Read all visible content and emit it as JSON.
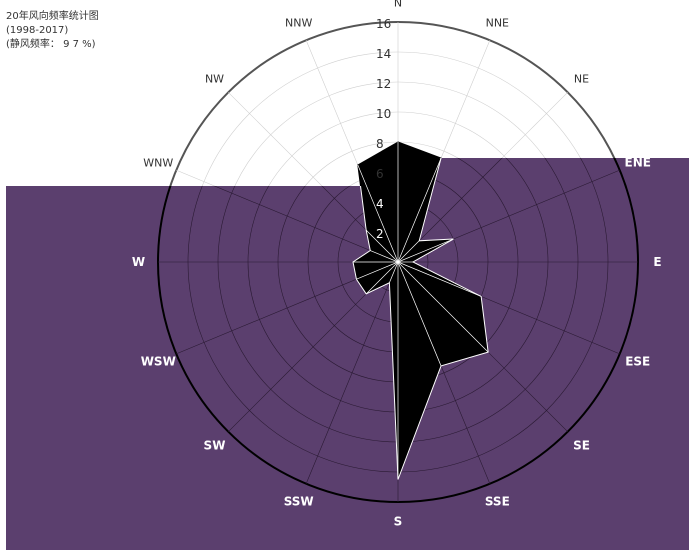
{
  "header": {
    "title": "20年风向频率统计图",
    "period": "(1998-2017)",
    "calm": "(静风频率： 9 7 %)"
  },
  "colors": {
    "background": "#ffffff",
    "overlay": "#5b3f6e",
    "fill": "#000000",
    "grid": "#bbbbbb"
  },
  "chart_data": {
    "type": "polar_rose",
    "title": "20年风向频率统计图",
    "directions": [
      "N",
      "NNE",
      "NE",
      "ENE",
      "E",
      "ESE",
      "SE",
      "SSE",
      "S",
      "SSW",
      "SW",
      "WSW",
      "W",
      "WNW",
      "NW",
      "NNW"
    ],
    "values": [
      8,
      7.5,
      2,
      4,
      1,
      6,
      8.5,
      7.5,
      14.5,
      1.5,
      3,
      3,
      3,
      2,
      3,
      7
    ],
    "rlim": [
      0,
      16
    ],
    "radial_ticks": [
      "2",
      "4",
      "6",
      "8",
      "10",
      "12",
      "14",
      "16"
    ]
  }
}
